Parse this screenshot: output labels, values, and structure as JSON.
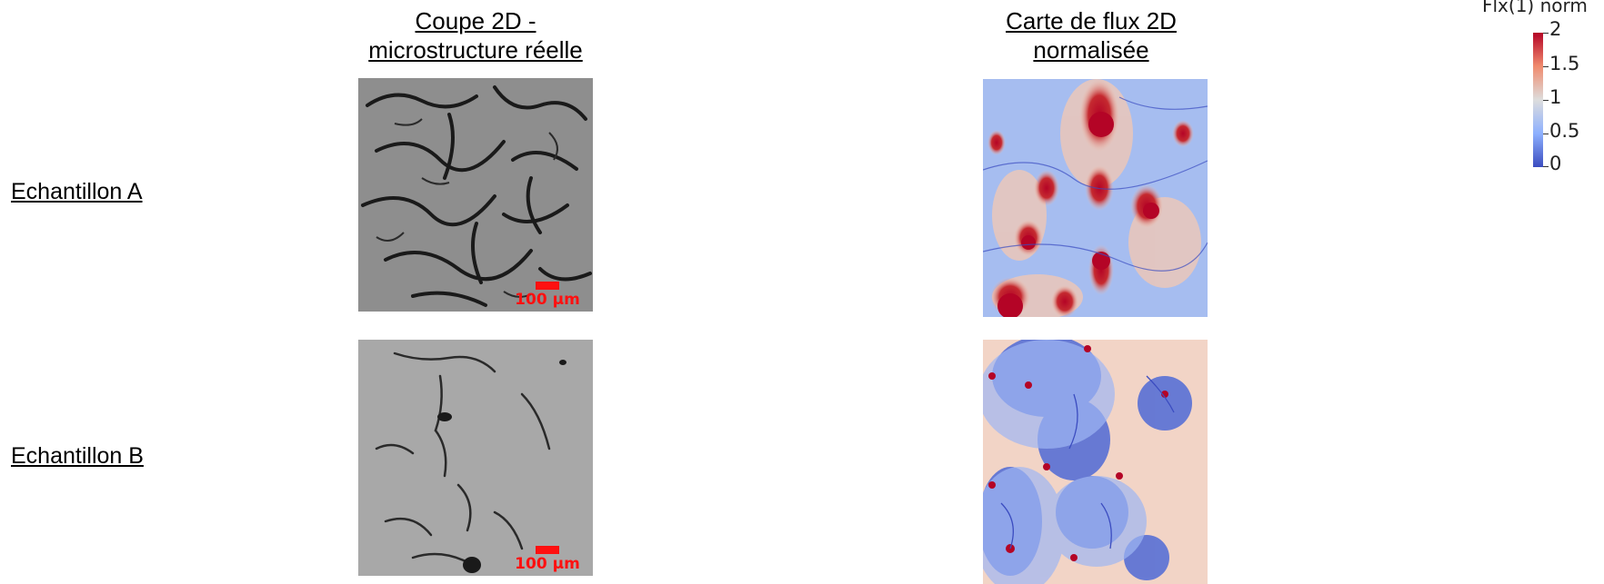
{
  "headers": {
    "left_line1": "Coupe 2D -",
    "left_line2": "microstructure réelle",
    "right_line1": "Carte de flux 2D",
    "right_line2": "normalisée"
  },
  "rows": [
    {
      "label": "Echantillon A"
    },
    {
      "label": "Echantillon B"
    }
  ],
  "scale_bar_label": "100 µm",
  "colorbar": {
    "title": "Flx(1) norm",
    "ticks": [
      "2",
      "1.5",
      "1",
      "0.5",
      "0"
    ],
    "range": [
      0,
      2
    ],
    "colors": {
      "high": "#b40426",
      "mid": "#dddddd",
      "low": "#3b4cc0"
    }
  }
}
